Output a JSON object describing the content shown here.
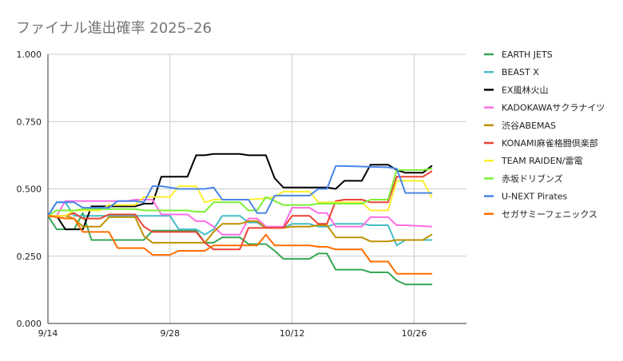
{
  "chart_data": {
    "type": "line",
    "title": "ファイナル進出確率 2025–26",
    "xlabel": "",
    "ylabel": "",
    "x_start": "9/14",
    "x_ticks": [
      {
        "label": "9/14",
        "day": 0
      },
      {
        "label": "9/28",
        "day": 14
      },
      {
        "label": "10/12",
        "day": 28
      },
      {
        "label": "10/26",
        "day": 42
      }
    ],
    "xlim": [
      0,
      48
    ],
    "ylim": [
      0,
      1
    ],
    "y_ticks": [
      {
        "label": "0.000",
        "value": 0
      },
      {
        "label": "0.250",
        "value": 0.25
      },
      {
        "label": "0.500",
        "value": 0.5
      },
      {
        "label": "0.750",
        "value": 0.75
      },
      {
        "label": "1.000",
        "value": 1
      }
    ],
    "grid": true,
    "legend_position": "right",
    "series": [
      {
        "name": "EARTH JETS",
        "color": "#34a853",
        "points": [
          [
            0,
            0.4
          ],
          [
            1,
            0.35
          ],
          [
            3,
            0.35
          ],
          [
            4,
            0.41
          ],
          [
            5,
            0.31
          ],
          [
            11,
            0.31
          ],
          [
            12,
            0.345
          ],
          [
            17,
            0.345
          ],
          [
            18,
            0.3
          ],
          [
            19,
            0.3
          ],
          [
            20,
            0.32
          ],
          [
            22,
            0.32
          ],
          [
            23,
            0.295
          ],
          [
            25,
            0.295
          ],
          [
            26,
            0.27
          ],
          [
            27,
            0.24
          ],
          [
            30,
            0.24
          ],
          [
            31,
            0.26
          ],
          [
            32,
            0.26
          ],
          [
            33,
            0.2
          ],
          [
            36,
            0.2
          ],
          [
            37,
            0.19
          ],
          [
            39,
            0.19
          ],
          [
            40,
            0.16
          ],
          [
            41,
            0.145
          ],
          [
            44,
            0.145
          ]
        ]
      },
      {
        "name": "BEAST X",
        "color": "#46bdc6",
        "points": [
          [
            0,
            0.4
          ],
          [
            1,
            0.45
          ],
          [
            2,
            0.45
          ],
          [
            3,
            0.4
          ],
          [
            11,
            0.4
          ],
          [
            12,
            0.4
          ],
          [
            14,
            0.4
          ],
          [
            15,
            0.35
          ],
          [
            17,
            0.35
          ],
          [
            18,
            0.33
          ],
          [
            19,
            0.35
          ],
          [
            20,
            0.4
          ],
          [
            22,
            0.4
          ],
          [
            23,
            0.375
          ],
          [
            24,
            0.375
          ],
          [
            25,
            0.355
          ],
          [
            27,
            0.355
          ],
          [
            28,
            0.37
          ],
          [
            30,
            0.37
          ],
          [
            31,
            0.36
          ],
          [
            32,
            0.36
          ],
          [
            33,
            0.37
          ],
          [
            36,
            0.37
          ],
          [
            37,
            0.365
          ],
          [
            39,
            0.365
          ],
          [
            40,
            0.29
          ],
          [
            41,
            0.31
          ],
          [
            44,
            0.31
          ]
        ]
      },
      {
        "name": "EX風林火山",
        "color": "#000000",
        "points": [
          [
            0,
            0.4
          ],
          [
            1,
            0.4
          ],
          [
            2,
            0.35
          ],
          [
            4,
            0.35
          ],
          [
            5,
            0.435
          ],
          [
            10,
            0.435
          ],
          [
            11,
            0.445
          ],
          [
            12,
            0.445
          ],
          [
            13,
            0.545
          ],
          [
            16,
            0.545
          ],
          [
            17,
            0.625
          ],
          [
            18,
            0.625
          ],
          [
            19,
            0.63
          ],
          [
            22,
            0.63
          ],
          [
            23,
            0.625
          ],
          [
            25,
            0.625
          ],
          [
            26,
            0.54
          ],
          [
            27,
            0.505
          ],
          [
            32,
            0.505
          ],
          [
            33,
            0.5
          ],
          [
            34,
            0.53
          ],
          [
            36,
            0.53
          ],
          [
            37,
            0.59
          ],
          [
            39,
            0.59
          ],
          [
            40,
            0.57
          ],
          [
            41,
            0.56
          ],
          [
            43,
            0.56
          ],
          [
            44,
            0.585
          ]
        ]
      },
      {
        "name": "KADOKAWAサクラナイツ",
        "color": "#ff6ee6",
        "points": [
          [
            0,
            0.4
          ],
          [
            1,
            0.4
          ],
          [
            2,
            0.455
          ],
          [
            9,
            0.455
          ],
          [
            10,
            0.46
          ],
          [
            11,
            0.46
          ],
          [
            12,
            0.46
          ],
          [
            13,
            0.405
          ],
          [
            16,
            0.405
          ],
          [
            17,
            0.38
          ],
          [
            18,
            0.38
          ],
          [
            19,
            0.36
          ],
          [
            20,
            0.33
          ],
          [
            22,
            0.33
          ],
          [
            23,
            0.39
          ],
          [
            24,
            0.39
          ],
          [
            25,
            0.36
          ],
          [
            27,
            0.36
          ],
          [
            28,
            0.43
          ],
          [
            30,
            0.43
          ],
          [
            31,
            0.41
          ],
          [
            32,
            0.41
          ],
          [
            33,
            0.36
          ],
          [
            36,
            0.36
          ],
          [
            37,
            0.395
          ],
          [
            39,
            0.395
          ],
          [
            40,
            0.365
          ],
          [
            41,
            0.365
          ],
          [
            44,
            0.36
          ]
        ]
      },
      {
        "name": "渋谷ABEMAS",
        "color": "#bf9000",
        "points": [
          [
            0,
            0.4
          ],
          [
            2,
            0.4
          ],
          [
            3,
            0.39
          ],
          [
            4,
            0.36
          ],
          [
            6,
            0.36
          ],
          [
            7,
            0.395
          ],
          [
            10,
            0.395
          ],
          [
            11,
            0.325
          ],
          [
            12,
            0.3
          ],
          [
            17,
            0.3
          ],
          [
            18,
            0.3
          ],
          [
            19,
            0.34
          ],
          [
            20,
            0.37
          ],
          [
            22,
            0.37
          ],
          [
            23,
            0.38
          ],
          [
            24,
            0.38
          ],
          [
            25,
            0.355
          ],
          [
            27,
            0.355
          ],
          [
            28,
            0.36
          ],
          [
            30,
            0.36
          ],
          [
            31,
            0.365
          ],
          [
            32,
            0.365
          ],
          [
            33,
            0.32
          ],
          [
            36,
            0.32
          ],
          [
            37,
            0.305
          ],
          [
            39,
            0.305
          ],
          [
            40,
            0.31
          ],
          [
            43,
            0.31
          ],
          [
            44,
            0.33
          ]
        ]
      },
      {
        "name": "KONAMI麻雀格闘倶楽部",
        "color": "#ea4335",
        "points": [
          [
            0,
            0.4
          ],
          [
            2,
            0.4
          ],
          [
            3,
            0.41
          ],
          [
            4,
            0.39
          ],
          [
            6,
            0.39
          ],
          [
            7,
            0.405
          ],
          [
            10,
            0.405
          ],
          [
            11,
            0.36
          ],
          [
            12,
            0.34
          ],
          [
            17,
            0.34
          ],
          [
            18,
            0.3
          ],
          [
            19,
            0.275
          ],
          [
            22,
            0.275
          ],
          [
            23,
            0.355
          ],
          [
            24,
            0.355
          ],
          [
            25,
            0.355
          ],
          [
            27,
            0.355
          ],
          [
            28,
            0.4
          ],
          [
            30,
            0.4
          ],
          [
            31,
            0.37
          ],
          [
            32,
            0.37
          ],
          [
            33,
            0.455
          ],
          [
            34,
            0.46
          ],
          [
            36,
            0.46
          ],
          [
            37,
            0.45
          ],
          [
            39,
            0.45
          ],
          [
            40,
            0.545
          ],
          [
            43,
            0.545
          ],
          [
            44,
            0.565
          ]
        ]
      },
      {
        "name": "TEAM RAIDEN/雷電",
        "color": "#fbee2f",
        "points": [
          [
            0,
            0.4
          ],
          [
            2,
            0.4
          ],
          [
            3,
            0.42
          ],
          [
            6,
            0.42
          ],
          [
            7,
            0.44
          ],
          [
            10,
            0.44
          ],
          [
            11,
            0.47
          ],
          [
            12,
            0.47
          ],
          [
            14,
            0.47
          ],
          [
            15,
            0.51
          ],
          [
            17,
            0.51
          ],
          [
            18,
            0.45
          ],
          [
            19,
            0.46
          ],
          [
            22,
            0.46
          ],
          [
            23,
            0.46
          ],
          [
            25,
            0.465
          ],
          [
            26,
            0.47
          ],
          [
            27,
            0.49
          ],
          [
            30,
            0.49
          ],
          [
            31,
            0.45
          ],
          [
            32,
            0.45
          ],
          [
            33,
            0.45
          ],
          [
            36,
            0.45
          ],
          [
            37,
            0.42
          ],
          [
            39,
            0.42
          ],
          [
            40,
            0.53
          ],
          [
            43,
            0.53
          ],
          [
            44,
            0.47
          ]
        ]
      },
      {
        "name": "赤坂ドリブンズ",
        "color": "#7cf036",
        "points": [
          [
            0,
            0.4
          ],
          [
            1,
            0.42
          ],
          [
            3,
            0.42
          ],
          [
            4,
            0.425
          ],
          [
            10,
            0.425
          ],
          [
            11,
            0.42
          ],
          [
            12,
            0.42
          ],
          [
            16,
            0.42
          ],
          [
            17,
            0.415
          ],
          [
            18,
            0.415
          ],
          [
            19,
            0.45
          ],
          [
            22,
            0.45
          ],
          [
            23,
            0.42
          ],
          [
            24,
            0.42
          ],
          [
            25,
            0.47
          ],
          [
            27,
            0.44
          ],
          [
            30,
            0.44
          ],
          [
            31,
            0.445
          ],
          [
            32,
            0.445
          ],
          [
            33,
            0.445
          ],
          [
            36,
            0.445
          ],
          [
            37,
            0.46
          ],
          [
            39,
            0.46
          ],
          [
            40,
            0.57
          ],
          [
            43,
            0.57
          ],
          [
            44,
            0.575
          ]
        ]
      },
      {
        "name": "U-NEXT Pirates",
        "color": "#4a86e8",
        "points": [
          [
            0,
            0.4
          ],
          [
            1,
            0.45
          ],
          [
            3,
            0.45
          ],
          [
            4,
            0.43
          ],
          [
            7,
            0.43
          ],
          [
            8,
            0.455
          ],
          [
            10,
            0.455
          ],
          [
            11,
            0.45
          ],
          [
            12,
            0.51
          ],
          [
            13,
            0.51
          ],
          [
            15,
            0.5
          ],
          [
            18,
            0.5
          ],
          [
            19,
            0.505
          ],
          [
            20,
            0.46
          ],
          [
            22,
            0.46
          ],
          [
            23,
            0.46
          ],
          [
            24,
            0.41
          ],
          [
            25,
            0.41
          ],
          [
            26,
            0.475
          ],
          [
            27,
            0.475
          ],
          [
            30,
            0.475
          ],
          [
            31,
            0.5
          ],
          [
            32,
            0.5
          ],
          [
            33,
            0.585
          ],
          [
            34,
            0.585
          ],
          [
            39,
            0.58
          ],
          [
            40,
            0.575
          ],
          [
            41,
            0.485
          ],
          [
            44,
            0.485
          ]
        ]
      },
      {
        "name": "セガサミーフェニックス",
        "color": "#ff6d01",
        "points": [
          [
            0,
            0.4
          ],
          [
            2,
            0.39
          ],
          [
            3,
            0.39
          ],
          [
            4,
            0.34
          ],
          [
            7,
            0.34
          ],
          [
            8,
            0.28
          ],
          [
            11,
            0.28
          ],
          [
            12,
            0.255
          ],
          [
            14,
            0.255
          ],
          [
            15,
            0.27
          ],
          [
            18,
            0.27
          ],
          [
            19,
            0.29
          ],
          [
            22,
            0.29
          ],
          [
            23,
            0.29
          ],
          [
            24,
            0.29
          ],
          [
            25,
            0.33
          ],
          [
            26,
            0.29
          ],
          [
            27,
            0.29
          ],
          [
            30,
            0.29
          ],
          [
            31,
            0.285
          ],
          [
            32,
            0.285
          ],
          [
            33,
            0.275
          ],
          [
            36,
            0.275
          ],
          [
            37,
            0.23
          ],
          [
            39,
            0.23
          ],
          [
            40,
            0.185
          ],
          [
            44,
            0.185
          ]
        ]
      }
    ]
  }
}
